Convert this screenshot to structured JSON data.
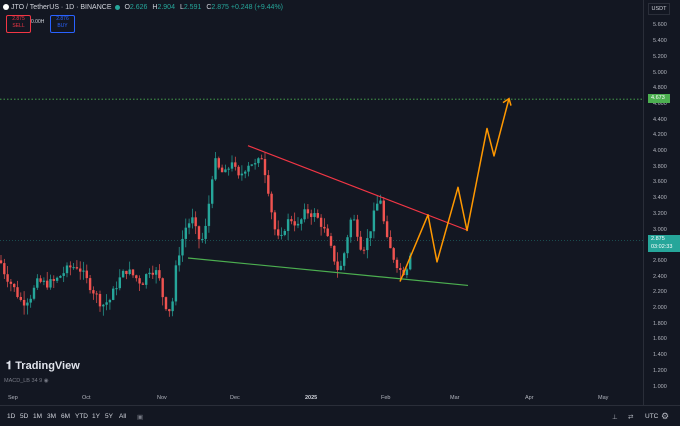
{
  "header": {
    "symbol": "JTO / TetherUS · 1D · BINANCE",
    "o_label": "O",
    "o_value": "2.626",
    "h_label": "H",
    "h_value": "2.904",
    "l_label": "L",
    "l_value": "2.591",
    "c_label": "C",
    "c_value": "2.875 +0.248 (+9.44%)"
  },
  "trade": {
    "sell_price": "2.875",
    "sell_label": "SELL",
    "spread": "0.00H",
    "buy_price": "2.876",
    "buy_label": "BUY"
  },
  "price_axis": {
    "currency": "USDT",
    "ticks": [
      "5.600",
      "5.400",
      "5.200",
      "5.000",
      "4.800",
      "4.600",
      "4.400",
      "4.200",
      "4.000",
      "3.800",
      "3.600",
      "3.400",
      "3.200",
      "3.000",
      "2.800",
      "2.600",
      "2.400",
      "2.200",
      "2.000",
      "1.800",
      "1.600",
      "1.400",
      "1.200",
      "1.000"
    ],
    "horizontal_line_label": "4.673",
    "current_price": "2.875",
    "countdown": "03:02:33"
  },
  "time_axis": {
    "labels": [
      "Sep",
      "Oct",
      "Nov",
      "Dec",
      "2025",
      "Feb",
      "Mar",
      "Apr",
      "May"
    ]
  },
  "indicator": {
    "label": "MACD_LB 34 9"
  },
  "branding": {
    "logo": "TradingView"
  },
  "toolbar": {
    "ranges": [
      "1D",
      "5D",
      "1M",
      "3M",
      "6M",
      "YTD",
      "1Y",
      "5Y",
      "All"
    ],
    "timezone": "UTC"
  },
  "colors": {
    "up": "#26a69a",
    "down": "#ef5350",
    "resistance": "#f23645",
    "support": "#4caf50",
    "projection": "#ff9800"
  }
}
